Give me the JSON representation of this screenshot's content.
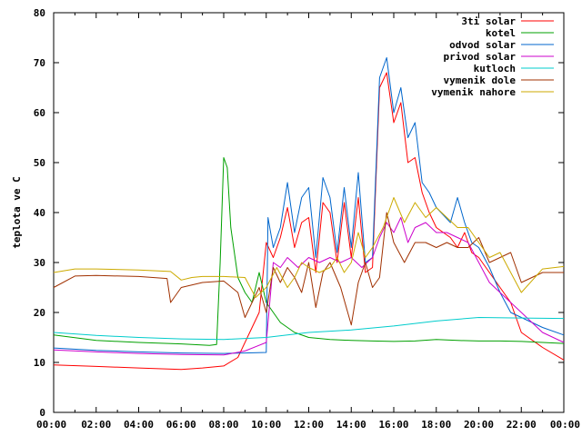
{
  "chart_data": {
    "type": "line",
    "title": "",
    "xlabel": "",
    "ylabel": "teplota ve C",
    "xlim": [
      "00:00",
      "24:00"
    ],
    "ylim": [
      0,
      80
    ],
    "x_ticks": [
      "00:00",
      "02:00",
      "04:00",
      "06:00",
      "08:00",
      "10:00",
      "12:00",
      "14:00",
      "16:00",
      "18:00",
      "20:00",
      "22:00",
      "00:00"
    ],
    "y_ticks": [
      "0",
      "10",
      "20",
      "30",
      "40",
      "50",
      "60",
      "70",
      "80"
    ],
    "grid": false,
    "legend_position": "top-right",
    "series": [
      {
        "name": "3ti solar",
        "color": "#ff0000",
        "x": [
          "00:00",
          "02:00",
          "04:00",
          "06:00",
          "07:00",
          "08:00",
          "08:40",
          "09:20",
          "09:40",
          "10:00",
          "10:20",
          "10:40",
          "11:00",
          "11:20",
          "11:40",
          "12:00",
          "12:20",
          "12:40",
          "13:00",
          "13:20",
          "13:40",
          "14:00",
          "14:20",
          "14:40",
          "15:00",
          "15:20",
          "15:40",
          "16:00",
          "16:20",
          "16:40",
          "17:00",
          "17:20",
          "17:40",
          "18:00",
          "18:40",
          "19:00",
          "19:20",
          "19:40",
          "20:00",
          "20:30",
          "21:00",
          "21:30",
          "22:00",
          "23:00",
          "24:00"
        ],
        "y": [
          9.5,
          9.2,
          8.9,
          8.6,
          8.9,
          9.3,
          11,
          17,
          20,
          34,
          31,
          35,
          41,
          33,
          38,
          39,
          28,
          42,
          40,
          30,
          42,
          31,
          43,
          28,
          29,
          65,
          68,
          58,
          62,
          50,
          51,
          44,
          40,
          37,
          35,
          33,
          36,
          32,
          31,
          28,
          25,
          22,
          16,
          13,
          10.5
        ]
      },
      {
        "name": "kotel",
        "color": "#00a000",
        "x": [
          "00:00",
          "02:00",
          "04:00",
          "06:00",
          "07:20",
          "07:40",
          "07:50",
          "08:00",
          "08:10",
          "08:20",
          "08:40",
          "09:00",
          "09:20",
          "09:40",
          "10:00",
          "10:40",
          "11:20",
          "12:00",
          "13:00",
          "14:00",
          "15:00",
          "16:00",
          "17:00",
          "18:00",
          "19:00",
          "20:00",
          "21:00",
          "22:00",
          "23:00",
          "24:00"
        ],
        "y": [
          15.5,
          14.4,
          14.0,
          13.7,
          13.4,
          13.6,
          30,
          51,
          49,
          37,
          27,
          24,
          22,
          28,
          22,
          18,
          16,
          15,
          14.6,
          14.4,
          14.3,
          14.2,
          14.3,
          14.6,
          14.4,
          14.3,
          14.3,
          14.2,
          14.0,
          13.8
        ]
      },
      {
        "name": "odvod solar",
        "color": "#0066cc",
        "x": [
          "00:00",
          "02:00",
          "04:00",
          "06:00",
          "08:00",
          "09:00",
          "10:00",
          "10:05",
          "10:20",
          "10:40",
          "11:00",
          "11:20",
          "11:40",
          "12:00",
          "12:20",
          "12:40",
          "13:00",
          "13:20",
          "13:40",
          "14:00",
          "14:20",
          "14:40",
          "15:00",
          "15:20",
          "15:40",
          "16:00",
          "16:20",
          "16:40",
          "17:00",
          "17:20",
          "17:40",
          "18:00",
          "18:40",
          "19:00",
          "19:20",
          "19:40",
          "20:00",
          "20:30",
          "21:00",
          "21:30",
          "22:00",
          "23:00",
          "24:00"
        ],
        "y": [
          12.9,
          12.4,
          12.1,
          11.9,
          11.8,
          11.9,
          12,
          39,
          33,
          37,
          46,
          36,
          43,
          45,
          31,
          47,
          43,
          32,
          45,
          33,
          48,
          30,
          31,
          67,
          71,
          60,
          65,
          55,
          58,
          46,
          44,
          41,
          38,
          43,
          38,
          34,
          33,
          29,
          24,
          20,
          19,
          17,
          15.5
        ]
      },
      {
        "name": "privod solar",
        "color": "#cc00cc",
        "x": [
          "00:00",
          "02:00",
          "04:00",
          "06:00",
          "08:00",
          "09:00",
          "10:00",
          "10:20",
          "10:40",
          "11:00",
          "11:30",
          "12:00",
          "12:30",
          "13:00",
          "13:30",
          "14:00",
          "14:30",
          "15:00",
          "15:20",
          "15:40",
          "16:00",
          "16:20",
          "16:40",
          "17:00",
          "17:30",
          "18:00",
          "18:30",
          "19:00",
          "19:30",
          "20:00",
          "20:30",
          "21:00",
          "21:30",
          "22:00",
          "23:00",
          "24:00"
        ],
        "y": [
          12.5,
          12.1,
          11.8,
          11.6,
          11.5,
          12.3,
          14,
          30,
          29,
          31,
          29,
          31,
          30,
          31,
          30,
          31,
          29,
          31,
          35,
          38,
          36,
          39,
          34,
          37,
          38,
          36,
          36,
          35,
          34,
          30,
          26,
          24,
          22,
          20,
          16,
          14
        ]
      },
      {
        "name": "kutloch",
        "color": "#00cccc",
        "x": [
          "00:00",
          "02:00",
          "04:00",
          "06:00",
          "08:00",
          "10:00",
          "12:00",
          "14:00",
          "16:00",
          "18:00",
          "20:00",
          "22:00",
          "24:00"
        ],
        "y": [
          16,
          15.4,
          15.0,
          14.7,
          14.6,
          15.0,
          16,
          16.5,
          17.3,
          18.3,
          19.0,
          18.9,
          18.8
        ]
      },
      {
        "name": "vymenik dole",
        "color": "#a03000",
        "x": [
          "00:00",
          "01:00",
          "02:00",
          "04:00",
          "05:20",
          "05:30",
          "06:00",
          "07:00",
          "08:00",
          "08:40",
          "09:00",
          "09:20",
          "09:40",
          "10:00",
          "10:20",
          "10:40",
          "11:00",
          "11:20",
          "11:40",
          "12:00",
          "12:20",
          "12:40",
          "13:00",
          "13:30",
          "14:00",
          "14:20",
          "14:40",
          "15:00",
          "15:20",
          "15:40",
          "16:00",
          "16:30",
          "17:00",
          "17:30",
          "18:00",
          "18:30",
          "19:00",
          "19:30",
          "20:00",
          "20:30",
          "21:00",
          "21:30",
          "22:00",
          "23:00",
          "24:00"
        ],
        "y": [
          25,
          27.3,
          27.4,
          27.2,
          26.8,
          22,
          25,
          26,
          26.3,
          24,
          19,
          22,
          25,
          20,
          29,
          26,
          29,
          27,
          24,
          30,
          21,
          28,
          30,
          25,
          17.5,
          26,
          30,
          25,
          27,
          40,
          34,
          30,
          34,
          34,
          33,
          34,
          33,
          33,
          35,
          30,
          31,
          32,
          26,
          28,
          28
        ]
      },
      {
        "name": "vymenik nahore",
        "color": "#ccaa00",
        "x": [
          "00:00",
          "01:00",
          "02:00",
          "04:00",
          "05:30",
          "06:00",
          "06:30",
          "07:00",
          "08:00",
          "09:00",
          "09:30",
          "10:00",
          "10:30",
          "11:00",
          "11:20",
          "11:40",
          "12:00",
          "12:30",
          "13:00",
          "13:20",
          "13:40",
          "14:00",
          "14:20",
          "14:40",
          "15:00",
          "15:30",
          "16:00",
          "16:30",
          "17:00",
          "17:30",
          "18:00",
          "18:30",
          "19:00",
          "19:30",
          "20:00",
          "20:30",
          "21:00",
          "21:30",
          "22:00",
          "23:00",
          "24:00"
        ],
        "y": [
          28,
          28.7,
          28.7,
          28.5,
          28.2,
          26.5,
          27,
          27.2,
          27.2,
          27,
          23,
          25,
          29,
          25,
          27,
          30,
          29,
          28,
          29,
          31,
          28,
          30,
          36,
          31,
          33,
          37,
          43,
          38,
          42,
          39,
          41,
          39,
          37,
          37,
          34,
          31,
          32,
          28,
          24,
          28.7,
          29.2
        ]
      }
    ]
  }
}
